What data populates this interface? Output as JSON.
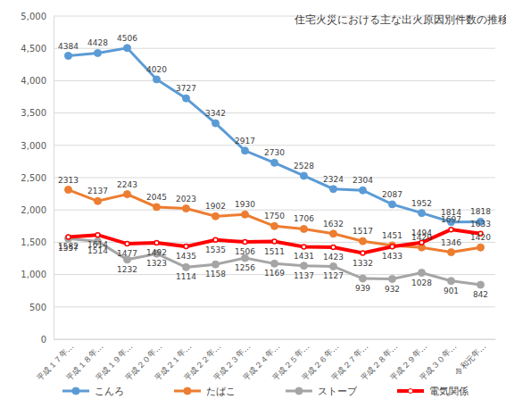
{
  "chart_data": {
    "type": "line",
    "title": "住宅火災における主な出火原因別件数の推移",
    "categories": [
      "平成１７年…",
      "平成１８年…",
      "平成１９年…",
      "平成２０年…",
      "平成２１年…",
      "平成２２年…",
      "平成２３年…",
      "平成２４年…",
      "平成２５年…",
      "平成２６年…",
      "平成２７年…",
      "平成２８年…",
      "平成２９年…",
      "平成３０年…",
      "令和元年…"
    ],
    "series": [
      {
        "name": "こんろ",
        "color": "#5b9bd5",
        "marker": "circle",
        "line_style": "solid",
        "values": [
          4384,
          4428,
          4506,
          4020,
          3727,
          3342,
          2917,
          2730,
          2528,
          2324,
          2304,
          2087,
          1952,
          1814,
          1818
        ]
      },
      {
        "name": "たばこ",
        "color": "#ed7d31",
        "marker": "circle",
        "line_style": "solid",
        "values": [
          2313,
          2137,
          2243,
          2045,
          2023,
          1902,
          1930,
          1750,
          1706,
          1632,
          1517,
          1451,
          1420,
          1346,
          1420
        ]
      },
      {
        "name": "ストーブ",
        "color": "#a5a5a5",
        "marker": "circle",
        "line_style": "solid",
        "values": [
          1557,
          1514,
          1232,
          1323,
          1114,
          1158,
          1256,
          1169,
          1137,
          1127,
          939,
          932,
          1028,
          901,
          842
        ]
      },
      {
        "name": "電気関係",
        "color": "#ff0000",
        "marker": "circle",
        "line_style": "solid",
        "values": [
          1582,
          1614,
          1477,
          1492,
          1435,
          1535,
          1506,
          1511,
          1431,
          1423,
          1332,
          1433,
          1494,
          1697,
          1633
        ]
      }
    ],
    "ylim": [
      0,
      5000
    ],
    "yticks": [
      0,
      500,
      {
        "value": 1000,
        "label": "1,000"
      },
      {
        "value": 1500,
        "label": "1,500"
      },
      {
        "value": 2000,
        "label": "2,000"
      },
      {
        "value": 2500,
        "label": "2,500"
      },
      {
        "value": 3000,
        "label": "3,000"
      },
      {
        "value": 3500,
        "label": "3,500"
      },
      {
        "value": 4000,
        "label": "4,000"
      },
      {
        "value": 4500,
        "label": "4,500"
      },
      {
        "value": 5000,
        "label": "5,000"
      }
    ],
    "grid": true,
    "data_labels": true,
    "legend": "bottom",
    "marker": "circle"
  }
}
